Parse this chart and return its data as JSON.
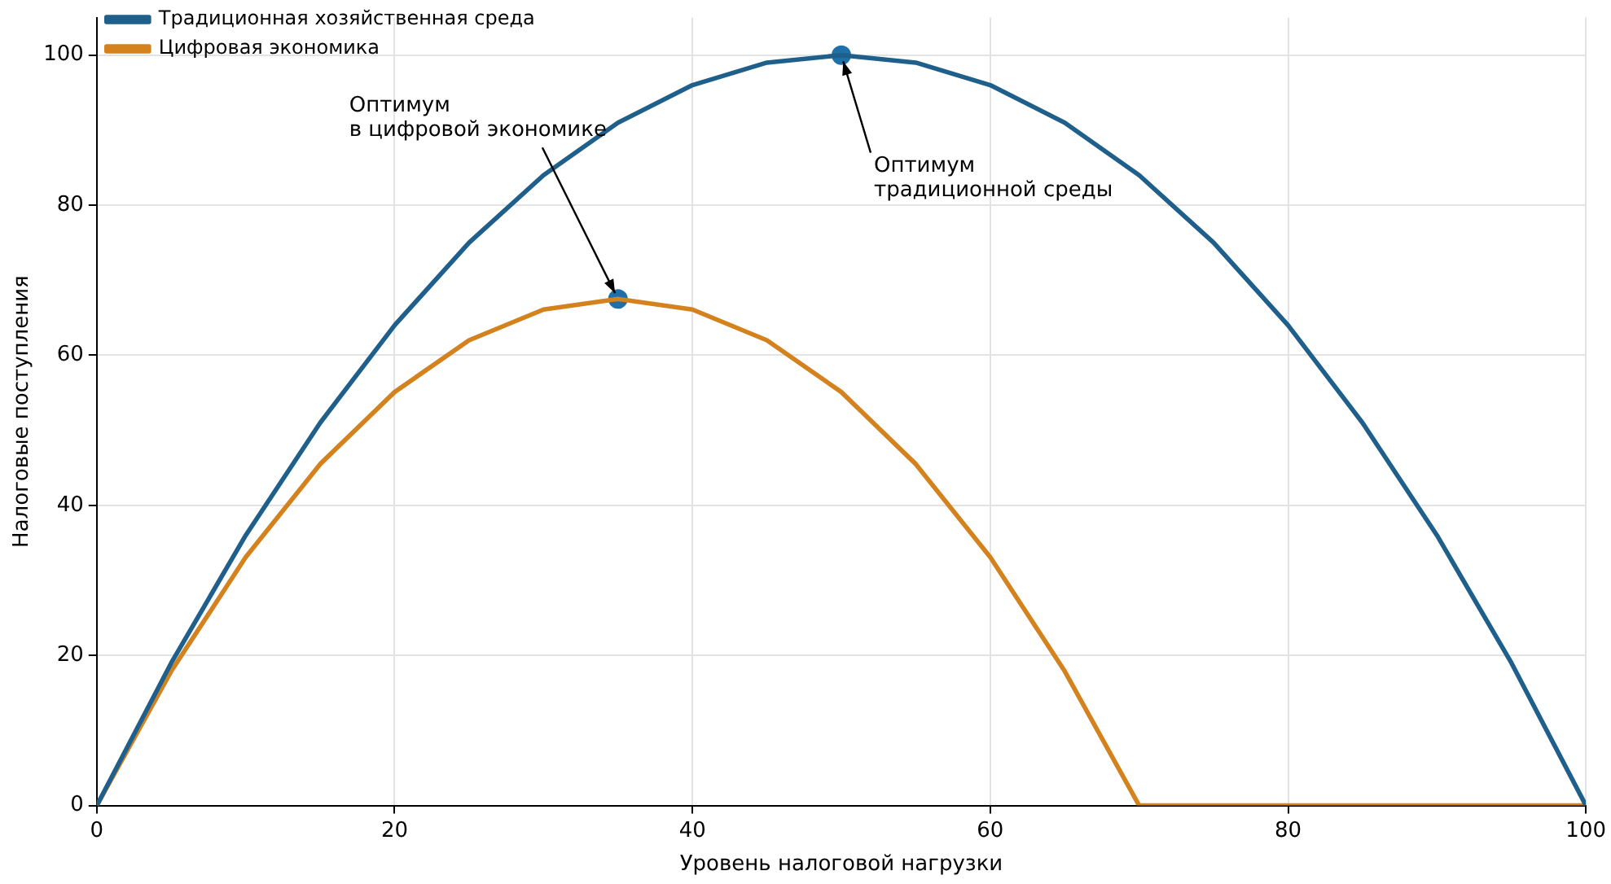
{
  "chart_data": {
    "type": "line",
    "xlabel": "Уровень налоговой нагрузки",
    "ylabel": "Налоговые поступления",
    "xlim": [
      0,
      100
    ],
    "ylim": [
      0,
      105
    ],
    "xticks": [
      0,
      20,
      40,
      60,
      80,
      100
    ],
    "yticks": [
      0,
      20,
      40,
      60,
      80,
      100
    ],
    "grid": true,
    "legend": "top left",
    "marker": "none",
    "series": [
      {
        "name": "Традиционная хозяйственная среда",
        "color": "#1f5f8b",
        "x": [
          0,
          5,
          10,
          15,
          20,
          25,
          30,
          35,
          40,
          45,
          50,
          55,
          60,
          65,
          70,
          75,
          80,
          85,
          90,
          95,
          100
        ],
        "values": [
          0,
          19,
          36,
          51,
          64,
          75,
          84,
          91,
          96,
          99,
          100,
          99,
          96,
          91,
          84,
          75,
          64,
          51,
          36,
          19,
          0
        ]
      },
      {
        "name": "Цифровая экономика",
        "color": "#d4821e",
        "x": [
          0,
          5,
          10,
          15,
          20,
          25,
          30,
          35,
          40,
          45,
          50,
          55,
          60,
          65,
          70,
          100
        ],
        "values": [
          0,
          17.9,
          33.1,
          45.5,
          55.1,
          62,
          66.1,
          67.5,
          66.1,
          62,
          55.1,
          45.5,
          33.1,
          17.9,
          0,
          0
        ]
      },
      {
        "type": "scatter",
        "marker": "circle",
        "color": "#1f6fa8",
        "x": [
          50,
          35
        ],
        "values": [
          100,
          67.5
        ]
      }
    ],
    "annotations": [
      {
        "text": "Оптимум\nтрадиционной среды",
        "x": 50,
        "y": 100
      },
      {
        "text": "Оптимум\nв цифровой экономике",
        "x": 35,
        "y": 67.5
      }
    ]
  }
}
